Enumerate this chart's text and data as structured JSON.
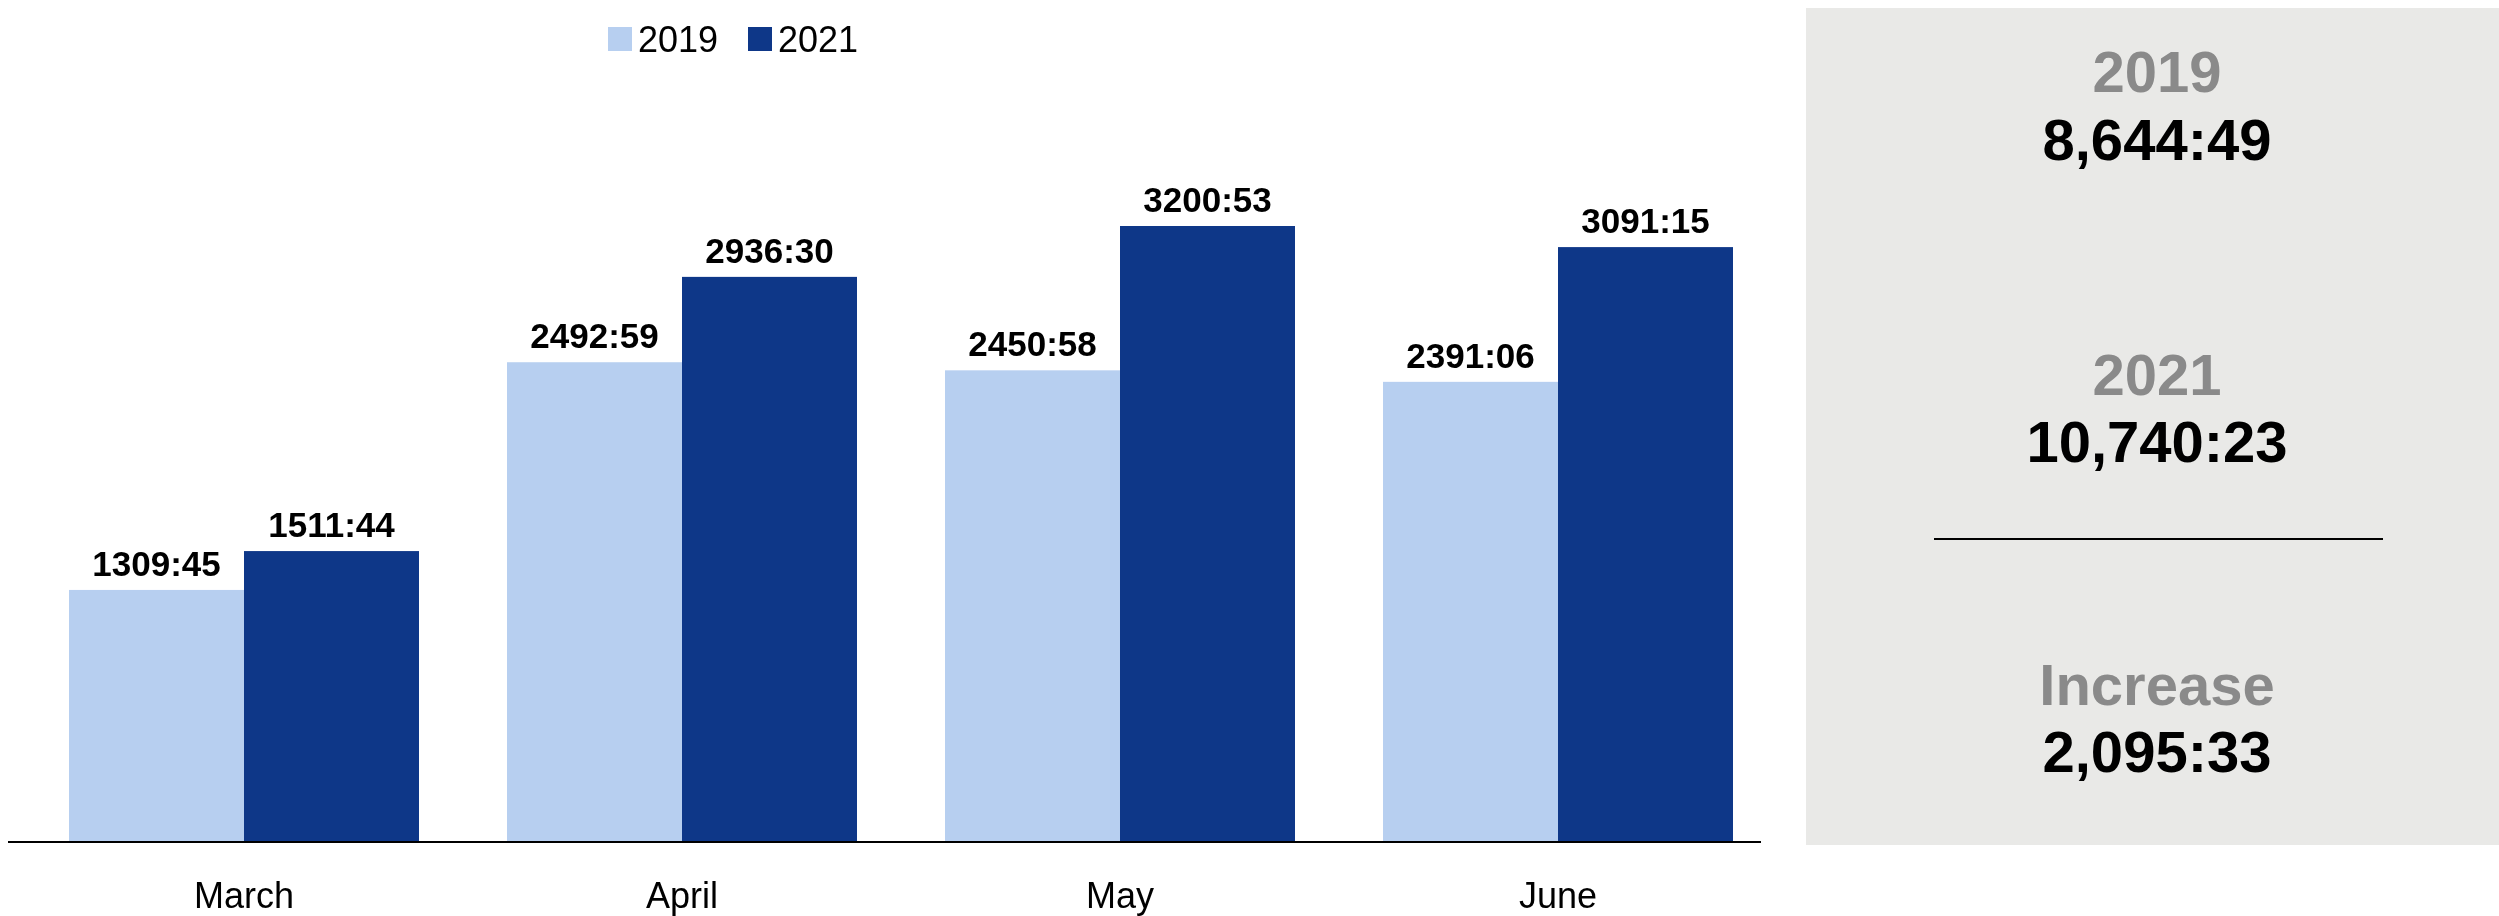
{
  "chart_data": [
    {
      "type": "bar",
      "categories": [
        "March",
        "April",
        "May",
        "June"
      ],
      "series": [
        {
          "name": "2019",
          "color": "#b7cff0",
          "values": [
            1309.75,
            2492.983,
            2450.967,
            2391.1
          ],
          "value_labels": [
            "1309:45",
            "2492:59",
            "2450:58",
            "2391:06"
          ]
        },
        {
          "name": "2021",
          "color": "#0e3788",
          "values": [
            1511.733,
            2936.5,
            3200.883,
            3091.25
          ],
          "value_labels": [
            "1511:44",
            "2936:30",
            "3200:53",
            "3091:15"
          ]
        }
      ],
      "legend": "top"
    },
    {
      "type": "other",
      "annotations": [
        "2019",
        "8,644:49",
        "2021",
        "10,740:23",
        "Increase",
        "2,095:33"
      ]
    }
  ]
}
